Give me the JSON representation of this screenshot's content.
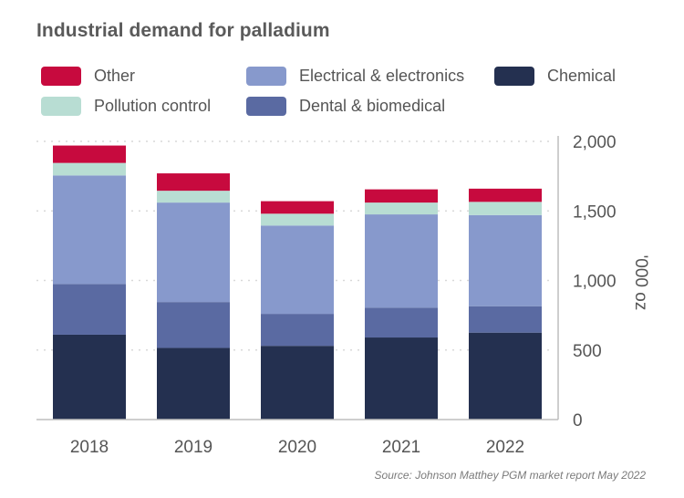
{
  "chart_data": {
    "type": "bar",
    "stacked": true,
    "title": "Industrial demand for palladium",
    "categories": [
      "2018",
      "2019",
      "2020",
      "2021",
      "2022"
    ],
    "series": [
      {
        "name": "Chemical",
        "color": "#243050",
        "values": [
          610,
          515,
          530,
          590,
          625
        ]
      },
      {
        "name": "Dental & biomedical",
        "color": "#5a6aa2",
        "values": [
          365,
          330,
          230,
          215,
          190
        ]
      },
      {
        "name": "Electrical & electronics",
        "color": "#8799cc",
        "values": [
          780,
          715,
          635,
          670,
          655
        ]
      },
      {
        "name": "Pollution control",
        "color": "#b8ddd3",
        "values": [
          90,
          85,
          85,
          85,
          95
        ]
      },
      {
        "name": "Other",
        "color": "#c70a3e",
        "values": [
          125,
          125,
          90,
          95,
          95
        ]
      }
    ],
    "legend": [
      {
        "name": "Other",
        "color": "#c70a3e"
      },
      {
        "name": "Electrical & electronics",
        "color": "#8799cc"
      },
      {
        "name": "Chemical",
        "color": "#243050"
      },
      {
        "name": "Pollution control",
        "color": "#b8ddd3"
      },
      {
        "name": "Dental & biomedical",
        "color": "#5a6aa2"
      }
    ],
    "ylabel": "'000 oz",
    "ylim": [
      0,
      2000
    ],
    "yticks": [
      {
        "value": 0,
        "label": "0"
      },
      {
        "value": 500,
        "label": "500"
      },
      {
        "value": 1000,
        "label": "1,000"
      },
      {
        "value": 1500,
        "label": "1,500"
      },
      {
        "value": 2000,
        "label": "2,000"
      }
    ],
    "yaxis_position": "right",
    "grid": true,
    "legend_position": "top",
    "source": "Source: Johnson Matthey PGM market report May 2022"
  }
}
